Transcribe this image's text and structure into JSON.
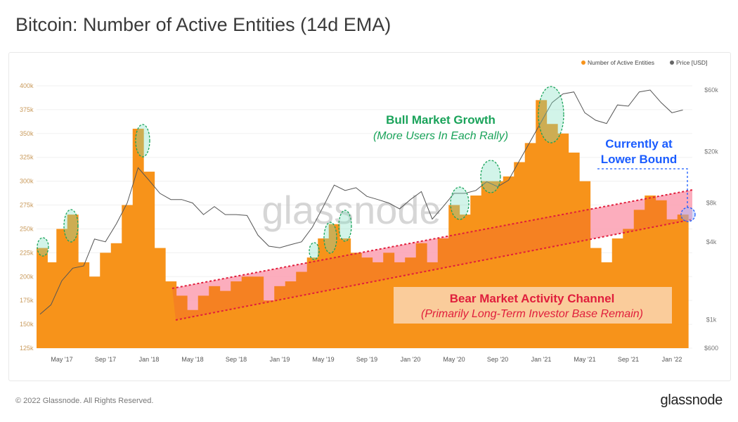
{
  "title": "Bitcoin: Number of Active Entities (14d EMA)",
  "footer": "© 2022 Glassnode. All Rights Reserved.",
  "logo": "glassnode",
  "watermark": "glassnode",
  "colors": {
    "entities": "#f7931a",
    "price": "#555555",
    "bull": "#1aa35a",
    "bear": "#e01e3c",
    "current": "#1a5cff",
    "bear_box": "#fad3aa",
    "channel": "#ffc0d0"
  },
  "annotations": {
    "bull_title": "Bull Market Growth",
    "bull_sub": "(More Users In Each Rally)",
    "bear_title": "Bear Market Activity Channel",
    "bear_sub": "(Primarily Long-Term Investor Base Remain)",
    "current_1": "Currently at",
    "current_2": "Lower Bound"
  },
  "chart_data": {
    "type": "bar",
    "title": "Bitcoin: Number of Active Entities (14d EMA)",
    "legend": {
      "placement": "top-right",
      "entries": [
        "Number of Active Entities",
        "Price [USD]"
      ]
    },
    "y_left": {
      "range": [
        125000,
        400000
      ],
      "ticks": [
        "125k",
        "150k",
        "175k",
        "200k",
        "225k",
        "250k",
        "275k",
        "300k",
        "325k",
        "350k",
        "375k",
        "400k"
      ]
    },
    "y_right": {
      "scale": "log",
      "range": [
        600,
        60000
      ],
      "ticks": [
        {
          "label": "$600",
          "value": 600
        },
        {
          "label": "$1k",
          "value": 1000
        },
        {
          "label": "$4k",
          "value": 4000
        },
        {
          "label": "$8k",
          "value": 8000
        },
        {
          "label": "$20k",
          "value": 20000
        },
        {
          "label": "$60k",
          "value": 60000
        }
      ]
    },
    "x_ticks": [
      {
        "label": "May '17",
        "date": "2017-05"
      },
      {
        "label": "Sep '17",
        "date": "2017-09"
      },
      {
        "label": "Jan '18",
        "date": "2018-01"
      },
      {
        "label": "May '18",
        "date": "2018-05"
      },
      {
        "label": "Sep '18",
        "date": "2018-09"
      },
      {
        "label": "Jan '19",
        "date": "2019-01"
      },
      {
        "label": "May '19",
        "date": "2019-05"
      },
      {
        "label": "Sep '19",
        "date": "2019-09"
      },
      {
        "label": "Jan '20",
        "date": "2020-01"
      },
      {
        "label": "May '20",
        "date": "2020-05"
      },
      {
        "label": "Sep '20",
        "date": "2020-09"
      },
      {
        "label": "Jan '21",
        "date": "2021-01"
      },
      {
        "label": "May '21",
        "date": "2021-05"
      },
      {
        "label": "Sep '21",
        "date": "2021-09"
      },
      {
        "label": "Jan '22",
        "date": "2022-01"
      }
    ],
    "dates": [
      "2017-03",
      "2017-04",
      "2017-05",
      "2017-06",
      "2017-07",
      "2017-08",
      "2017-09",
      "2017-10",
      "2017-11",
      "2017-12",
      "2018-01",
      "2018-02",
      "2018-03",
      "2018-04",
      "2018-05",
      "2018-06",
      "2018-07",
      "2018-08",
      "2018-09",
      "2018-10",
      "2018-11",
      "2018-12",
      "2019-01",
      "2019-02",
      "2019-03",
      "2019-04",
      "2019-05",
      "2019-06",
      "2019-07",
      "2019-08",
      "2019-09",
      "2019-10",
      "2019-11",
      "2019-12",
      "2020-01",
      "2020-02",
      "2020-03",
      "2020-04",
      "2020-05",
      "2020-06",
      "2020-07",
      "2020-08",
      "2020-09",
      "2020-10",
      "2020-11",
      "2020-12",
      "2021-01",
      "2021-02",
      "2021-03",
      "2021-04",
      "2021-05",
      "2021-06",
      "2021-07",
      "2021-08",
      "2021-09",
      "2021-10",
      "2021-11",
      "2021-12",
      "2022-01",
      "2022-02"
    ],
    "series": [
      {
        "name": "Number of Active Entities",
        "values": [
          230000,
          215000,
          250000,
          265000,
          215000,
          200000,
          225000,
          235000,
          275000,
          355000,
          310000,
          230000,
          195000,
          180000,
          165000,
          180000,
          190000,
          185000,
          195000,
          200000,
          200000,
          175000,
          190000,
          195000,
          205000,
          220000,
          240000,
          255000,
          240000,
          225000,
          220000,
          215000,
          225000,
          215000,
          220000,
          235000,
          215000,
          240000,
          275000,
          265000,
          285000,
          300000,
          300000,
          305000,
          320000,
          340000,
          385000,
          360000,
          350000,
          330000,
          300000,
          230000,
          215000,
          240000,
          250000,
          270000,
          285000,
          280000,
          260000,
          265000
        ]
      },
      {
        "name": "Price [USD]",
        "values": [
          1100,
          1300,
          2000,
          2500,
          2600,
          4200,
          4000,
          5500,
          8000,
          15000,
          12000,
          9500,
          8500,
          8500,
          8000,
          6500,
          7500,
          6500,
          6500,
          6400,
          4500,
          3700,
          3600,
          3800,
          4000,
          5200,
          7500,
          11000,
          10000,
          10500,
          9000,
          8500,
          8000,
          7200,
          8500,
          9800,
          6000,
          7500,
          9500,
          9500,
          10000,
          11700,
          10700,
          12000,
          17000,
          24000,
          34000,
          48000,
          56000,
          58000,
          40000,
          35000,
          33000,
          46000,
          45000,
          58000,
          60000,
          48000,
          40000,
          42000
        ]
      }
    ]
  }
}
